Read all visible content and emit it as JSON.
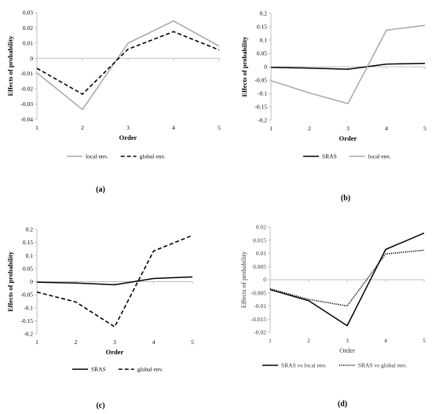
{
  "chart_data": [
    {
      "type": "line",
      "panel_label": "(a)",
      "x": [
        1,
        2,
        3,
        4,
        5
      ],
      "xticks": [
        "1",
        "2",
        "3",
        "4",
        "5"
      ],
      "xlabel": "Order",
      "ylabel": "Effects of probability",
      "ylim": [
        -0.04,
        0.03
      ],
      "yticks": [
        "-0.04",
        "-0.03",
        "-0.02",
        "-0.01",
        "0",
        "0.01",
        "0.02",
        "0.03"
      ],
      "grid": false,
      "legend": "bottom",
      "series": [
        {
          "name": "local env.",
          "color": "#a6a6a6",
          "style": "solid",
          "values": [
            -0.0095,
            -0.0335,
            0.01,
            0.0245,
            0.008
          ]
        },
        {
          "name": "global env.",
          "color": "#000000",
          "style": "dashed",
          "values": [
            -0.0065,
            -0.0235,
            0.006,
            0.0175,
            0.0055
          ]
        }
      ]
    },
    {
      "type": "line",
      "panel_label": "(b)",
      "x": [
        1,
        2,
        3,
        4,
        5
      ],
      "xticks": [
        "1",
        "2",
        "3",
        "4",
        "5"
      ],
      "xlabel": "Order",
      "ylabel": "Effects of probability",
      "ylim": [
        -0.2,
        0.2
      ],
      "yticks": [
        "-0.2",
        "-0.15",
        "-0.1",
        "-0.05",
        "0",
        "0.05",
        "0.1",
        "0.15",
        "0.2"
      ],
      "grid": false,
      "legend": "bottom",
      "series": [
        {
          "name": "SRAS",
          "color": "#000000",
          "style": "solid",
          "values": [
            -0.002,
            -0.005,
            -0.009,
            0.01,
            0.013
          ]
        },
        {
          "name": "local env.",
          "color": "#a6a6a6",
          "style": "solid",
          "values": [
            -0.052,
            -0.098,
            -0.138,
            0.137,
            0.155
          ]
        }
      ]
    },
    {
      "type": "line",
      "panel_label": "(c)",
      "x": [
        1,
        2,
        3,
        4,
        5
      ],
      "xticks": [
        "1",
        "2",
        "3",
        "4",
        "5"
      ],
      "xlabel": "Order",
      "ylabel": "Effects of probability",
      "ylim": [
        -0.2,
        0.2
      ],
      "yticks": [
        "-0.2",
        "-0.15",
        "-0.1",
        "-0.05",
        "0",
        "0.05",
        "0.1",
        "0.15",
        "0.2"
      ],
      "grid": false,
      "legend": "bottom",
      "series": [
        {
          "name": "SRAS",
          "color": "#000000",
          "style": "solid",
          "values": [
            -0.002,
            -0.005,
            -0.012,
            0.012,
            0.018
          ]
        },
        {
          "name": "global env.",
          "color": "#000000",
          "style": "dashed",
          "values": [
            -0.04,
            -0.078,
            -0.173,
            0.117,
            0.177
          ]
        }
      ]
    },
    {
      "type": "line",
      "panel_label": "(d)",
      "x": [
        1,
        2,
        3,
        4,
        5
      ],
      "xticks": [
        "1",
        "2",
        "3",
        "4",
        "5"
      ],
      "xlabel": "Order",
      "ylabel": "Effects of probability",
      "ylim": [
        -0.02,
        0.02
      ],
      "yticks": [
        "-0.02",
        "-0.015",
        "-0.01",
        "-0.005",
        "0",
        "0.005",
        "0.01",
        "0.015",
        "0.02"
      ],
      "grid": false,
      "legend": "bottom",
      "series": [
        {
          "name": "SRAS vs local env.",
          "color": "#000000",
          "style": "solid",
          "values": [
            -0.0038,
            -0.008,
            -0.0175,
            0.0115,
            0.0177
          ]
        },
        {
          "name": "SRAS vs global env.",
          "color": "#000000",
          "style": "dotted",
          "values": [
            -0.0035,
            -0.0075,
            -0.01,
            0.0098,
            0.0112
          ]
        }
      ]
    }
  ]
}
